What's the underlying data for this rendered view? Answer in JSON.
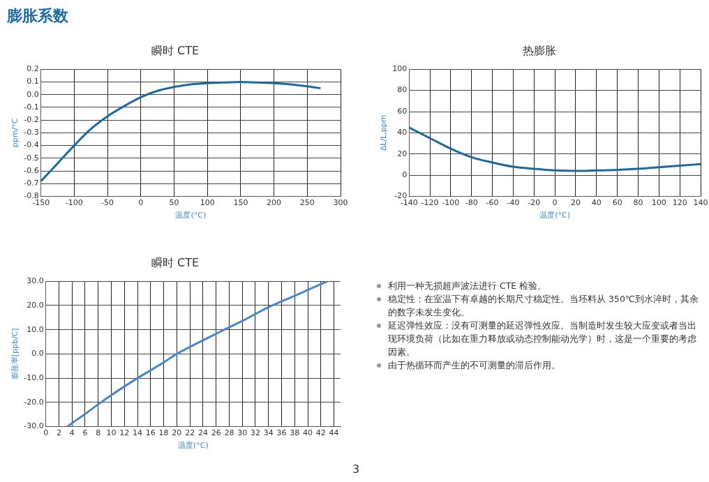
{
  "chart_data": [
    {
      "type": "line",
      "title": "瞬时 CTE",
      "xlabel": "温度(°C)",
      "ylabel": "ppm/°C",
      "xlim": [
        -150,
        300
      ],
      "xticks": [
        -150,
        -100,
        -50,
        0,
        50,
        100,
        150,
        200,
        250,
        300
      ],
      "ylim": [
        -0.8,
        0.2
      ],
      "yticks": [
        {
          "value": 0.2,
          "label": "0.2"
        },
        {
          "value": 0.1,
          "label": "0.1"
        },
        {
          "value": 0,
          "label": "0.0"
        },
        -0.1,
        -0.2,
        -0.3,
        -0.4,
        -0.5,
        -0.6,
        -0.7,
        -0.8
      ],
      "grid": true,
      "marker": "none",
      "series": [
        {
          "color": "#1a6aa0",
          "x": [
            -150,
            -125,
            -100,
            -75,
            -50,
            -25,
            0,
            25,
            50,
            75,
            100,
            125,
            150,
            175,
            200,
            225,
            250,
            270
          ],
          "values": [
            -0.68,
            -0.54,
            -0.4,
            -0.27,
            -0.17,
            -0.09,
            -0.02,
            0.03,
            0.06,
            0.08,
            0.09,
            0.095,
            0.1,
            0.095,
            0.09,
            0.08,
            0.065,
            0.05
          ]
        }
      ]
    },
    {
      "type": "line",
      "title": "热膨胀",
      "xlabel": "温度(°C)",
      "ylabel": "ΔL/L,ppm",
      "xlim": [
        -140,
        140
      ],
      "xticks": [
        -140,
        -120,
        -100,
        -80,
        -60,
        -40,
        -20,
        0,
        20,
        40,
        60,
        80,
        100,
        120,
        140
      ],
      "ylim": [
        -20,
        100
      ],
      "yticks": [
        -20,
        0,
        20,
        40,
        60,
        80,
        100
      ],
      "grid": true,
      "marker": "none",
      "series": [
        {
          "color": "#1a6aa0",
          "x": [
            -140,
            -120,
            -100,
            -80,
            -60,
            -40,
            -20,
            0,
            20,
            40,
            60,
            80,
            100,
            120,
            140
          ],
          "values": [
            45,
            35,
            25,
            17,
            12,
            8,
            6,
            4.5,
            4,
            4.5,
            5,
            6,
            7.5,
            9,
            10.5
          ]
        }
      ]
    },
    {
      "type": "line",
      "title": "瞬时 CTE",
      "xlabel": "温度(°C)",
      "ylabel": "膨胀率[ppb/C]",
      "xlim": [
        0,
        45
      ],
      "xticks": [
        0,
        2,
        4,
        6,
        8,
        10,
        12,
        14,
        16,
        18,
        20,
        22,
        24,
        26,
        28,
        30,
        32,
        34,
        36,
        38,
        40,
        42,
        44
      ],
      "ylim": [
        -30,
        30
      ],
      "yticks": [
        {
          "value": -30,
          "label": "-30.0"
        },
        {
          "value": -20,
          "label": "-20.0"
        },
        {
          "value": -10,
          "label": "-10.0"
        },
        {
          "value": 0,
          "label": "0.0"
        },
        {
          "value": 10,
          "label": "10.0"
        },
        {
          "value": 20,
          "label": "20.0"
        },
        {
          "value": 30,
          "label": "30.0"
        }
      ],
      "grid": true,
      "marker": "none",
      "series": [
        {
          "color": "#4a86c8",
          "x": [
            3.3,
            4,
            6,
            8,
            10,
            14,
            18,
            20,
            24,
            28,
            30,
            34,
            38,
            40,
            43
          ],
          "values": [
            -30,
            -28.6,
            -24.8,
            -20.8,
            -17,
            -10,
            -3.5,
            0,
            5.6,
            11,
            13.6,
            19.3,
            24,
            26.4,
            30
          ]
        }
      ]
    },
    {
      "type": "other",
      "title": "膨胀系数",
      "annotations": [
        "利用一种无损超声波法进行 CTE 检验。",
        "稳定性：在室温下有卓越的长期尺寸稳定性。当坯料从 350℃到水淬时，其余的数字未发生变化。",
        "延迟弹性效应：没有可测量的延迟弹性效应。当制造时发生较大应变或者当出现环境负荷（比如在重力释放或动态控制能动光学）时，这是一个重要的考虑因素。",
        "由于热循环而产生的不可测量的滞后作用。",
        "3"
      ]
    }
  ]
}
